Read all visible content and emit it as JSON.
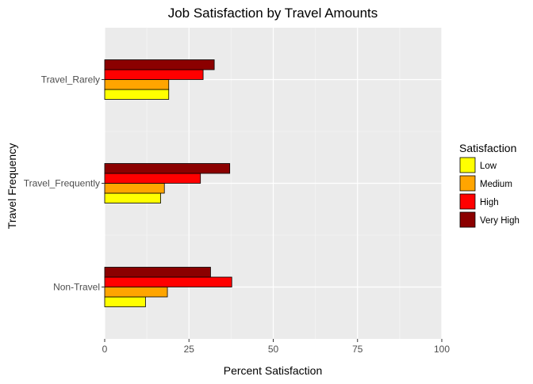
{
  "chart_data": {
    "type": "bar",
    "orientation": "horizontal",
    "title": "Job Satisfaction by Travel Amounts",
    "xlabel": "Percent Satisfaction",
    "ylabel": "Travel Frequency",
    "categories": [
      "Non-Travel",
      "Travel_Frequently",
      "Travel_Rarely"
    ],
    "series": [
      {
        "name": "Low",
        "color": "#ffff00",
        "values": [
          12.1,
          16.6,
          19.0
        ]
      },
      {
        "name": "Medium",
        "color": "#ffa500",
        "values": [
          18.6,
          17.7,
          19.0
        ]
      },
      {
        "name": "High",
        "color": "#ff0000",
        "values": [
          37.7,
          28.4,
          29.2
        ]
      },
      {
        "name": "Very High",
        "color": "#8b0000",
        "values": [
          31.4,
          37.1,
          32.5
        ]
      }
    ],
    "xlim": [
      0,
      100
    ],
    "xticks": [
      0,
      25,
      50,
      75,
      100
    ],
    "legend": {
      "title": "Satisfaction",
      "position": "right"
    },
    "grid": true,
    "panel_color": "#ebebeb"
  }
}
